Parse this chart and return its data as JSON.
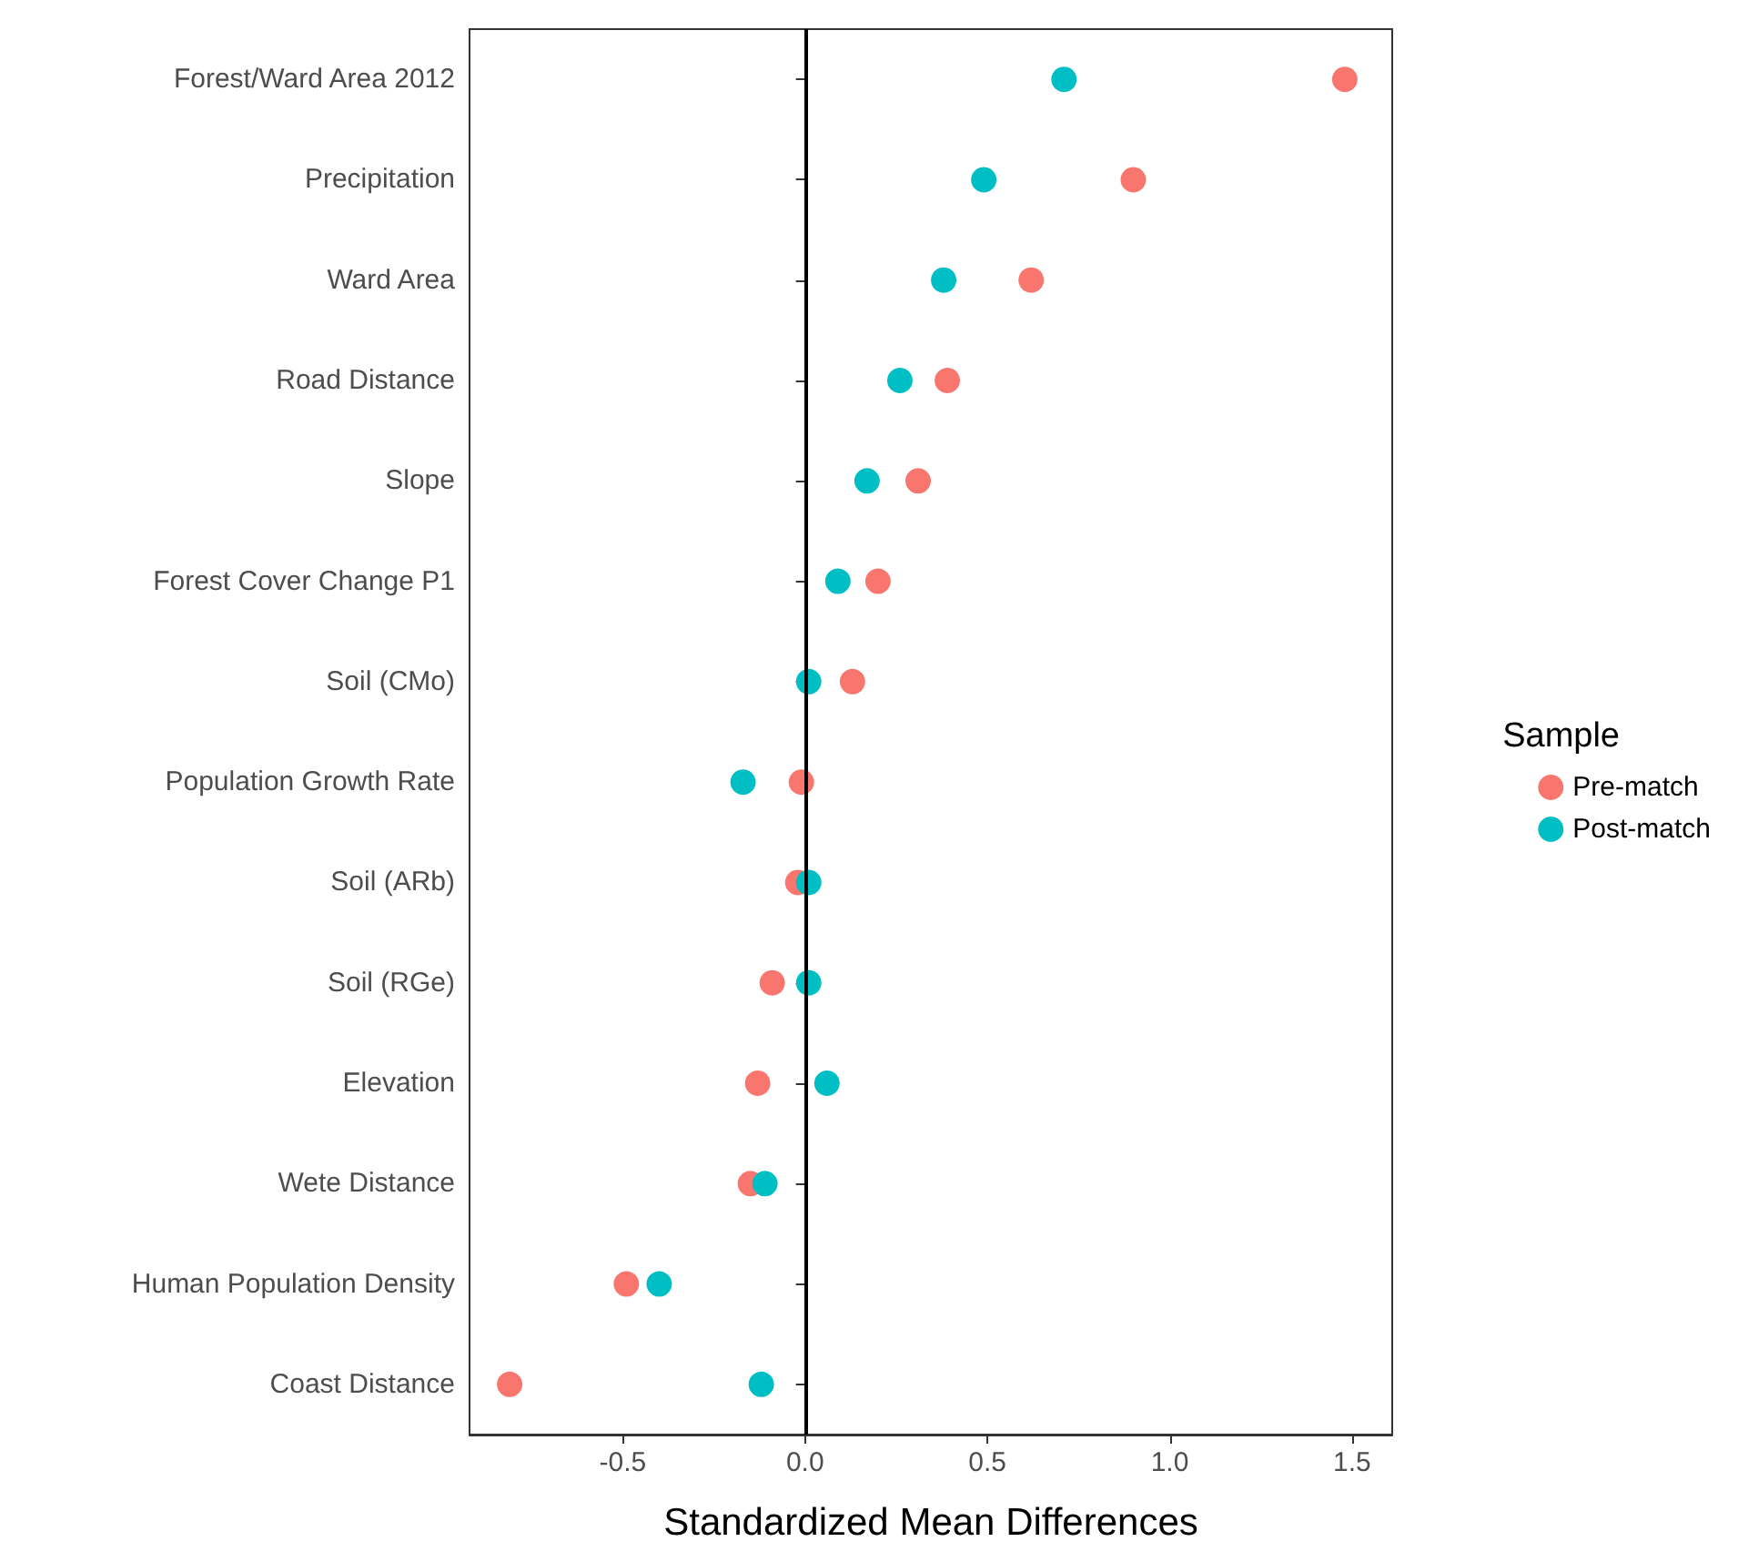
{
  "chart_data": {
    "type": "scatter",
    "orientation": "horizontal",
    "xlabel": "Standardized Mean Differences",
    "legend_title": "Sample",
    "legend": "right",
    "marker": "circle",
    "grid": false,
    "categories": [
      "Forest/Ward Area 2012",
      "Precipitation",
      "Ward Area",
      "Road Distance",
      "Slope",
      "Forest Cover Change P1",
      "Soil (CMo)",
      "Population Growth Rate",
      "Soil (ARb)",
      "Soil (RGe)",
      "Elevation",
      "Wete Distance",
      "Human Population Density",
      "Coast Distance"
    ],
    "series": [
      {
        "name": "Pre-match",
        "color": "#f8766d",
        "values": [
          1.48,
          0.9,
          0.62,
          0.39,
          0.31,
          0.2,
          0.13,
          -0.01,
          -0.02,
          -0.09,
          -0.13,
          -0.15,
          -0.49,
          -0.81
        ]
      },
      {
        "name": "Post-match",
        "color": "#00bfc4",
        "values": [
          0.71,
          0.49,
          0.38,
          0.26,
          0.17,
          0.09,
          0.01,
          -0.17,
          0.01,
          0.01,
          0.06,
          -0.11,
          -0.4,
          -0.12
        ]
      }
    ],
    "xlim": [
      -0.92,
      1.61
    ],
    "xticks": [
      {
        "value": -0.5,
        "label": "-0.5"
      },
      {
        "value": 0,
        "label": "0.0"
      },
      {
        "value": 0.5,
        "label": "0.5"
      },
      {
        "value": 1,
        "label": "1.0"
      },
      {
        "value": 1.5,
        "label": "1.5"
      }
    ],
    "ref_lines": [
      {
        "axis": "x",
        "value": 0,
        "color": "#000000"
      }
    ]
  }
}
